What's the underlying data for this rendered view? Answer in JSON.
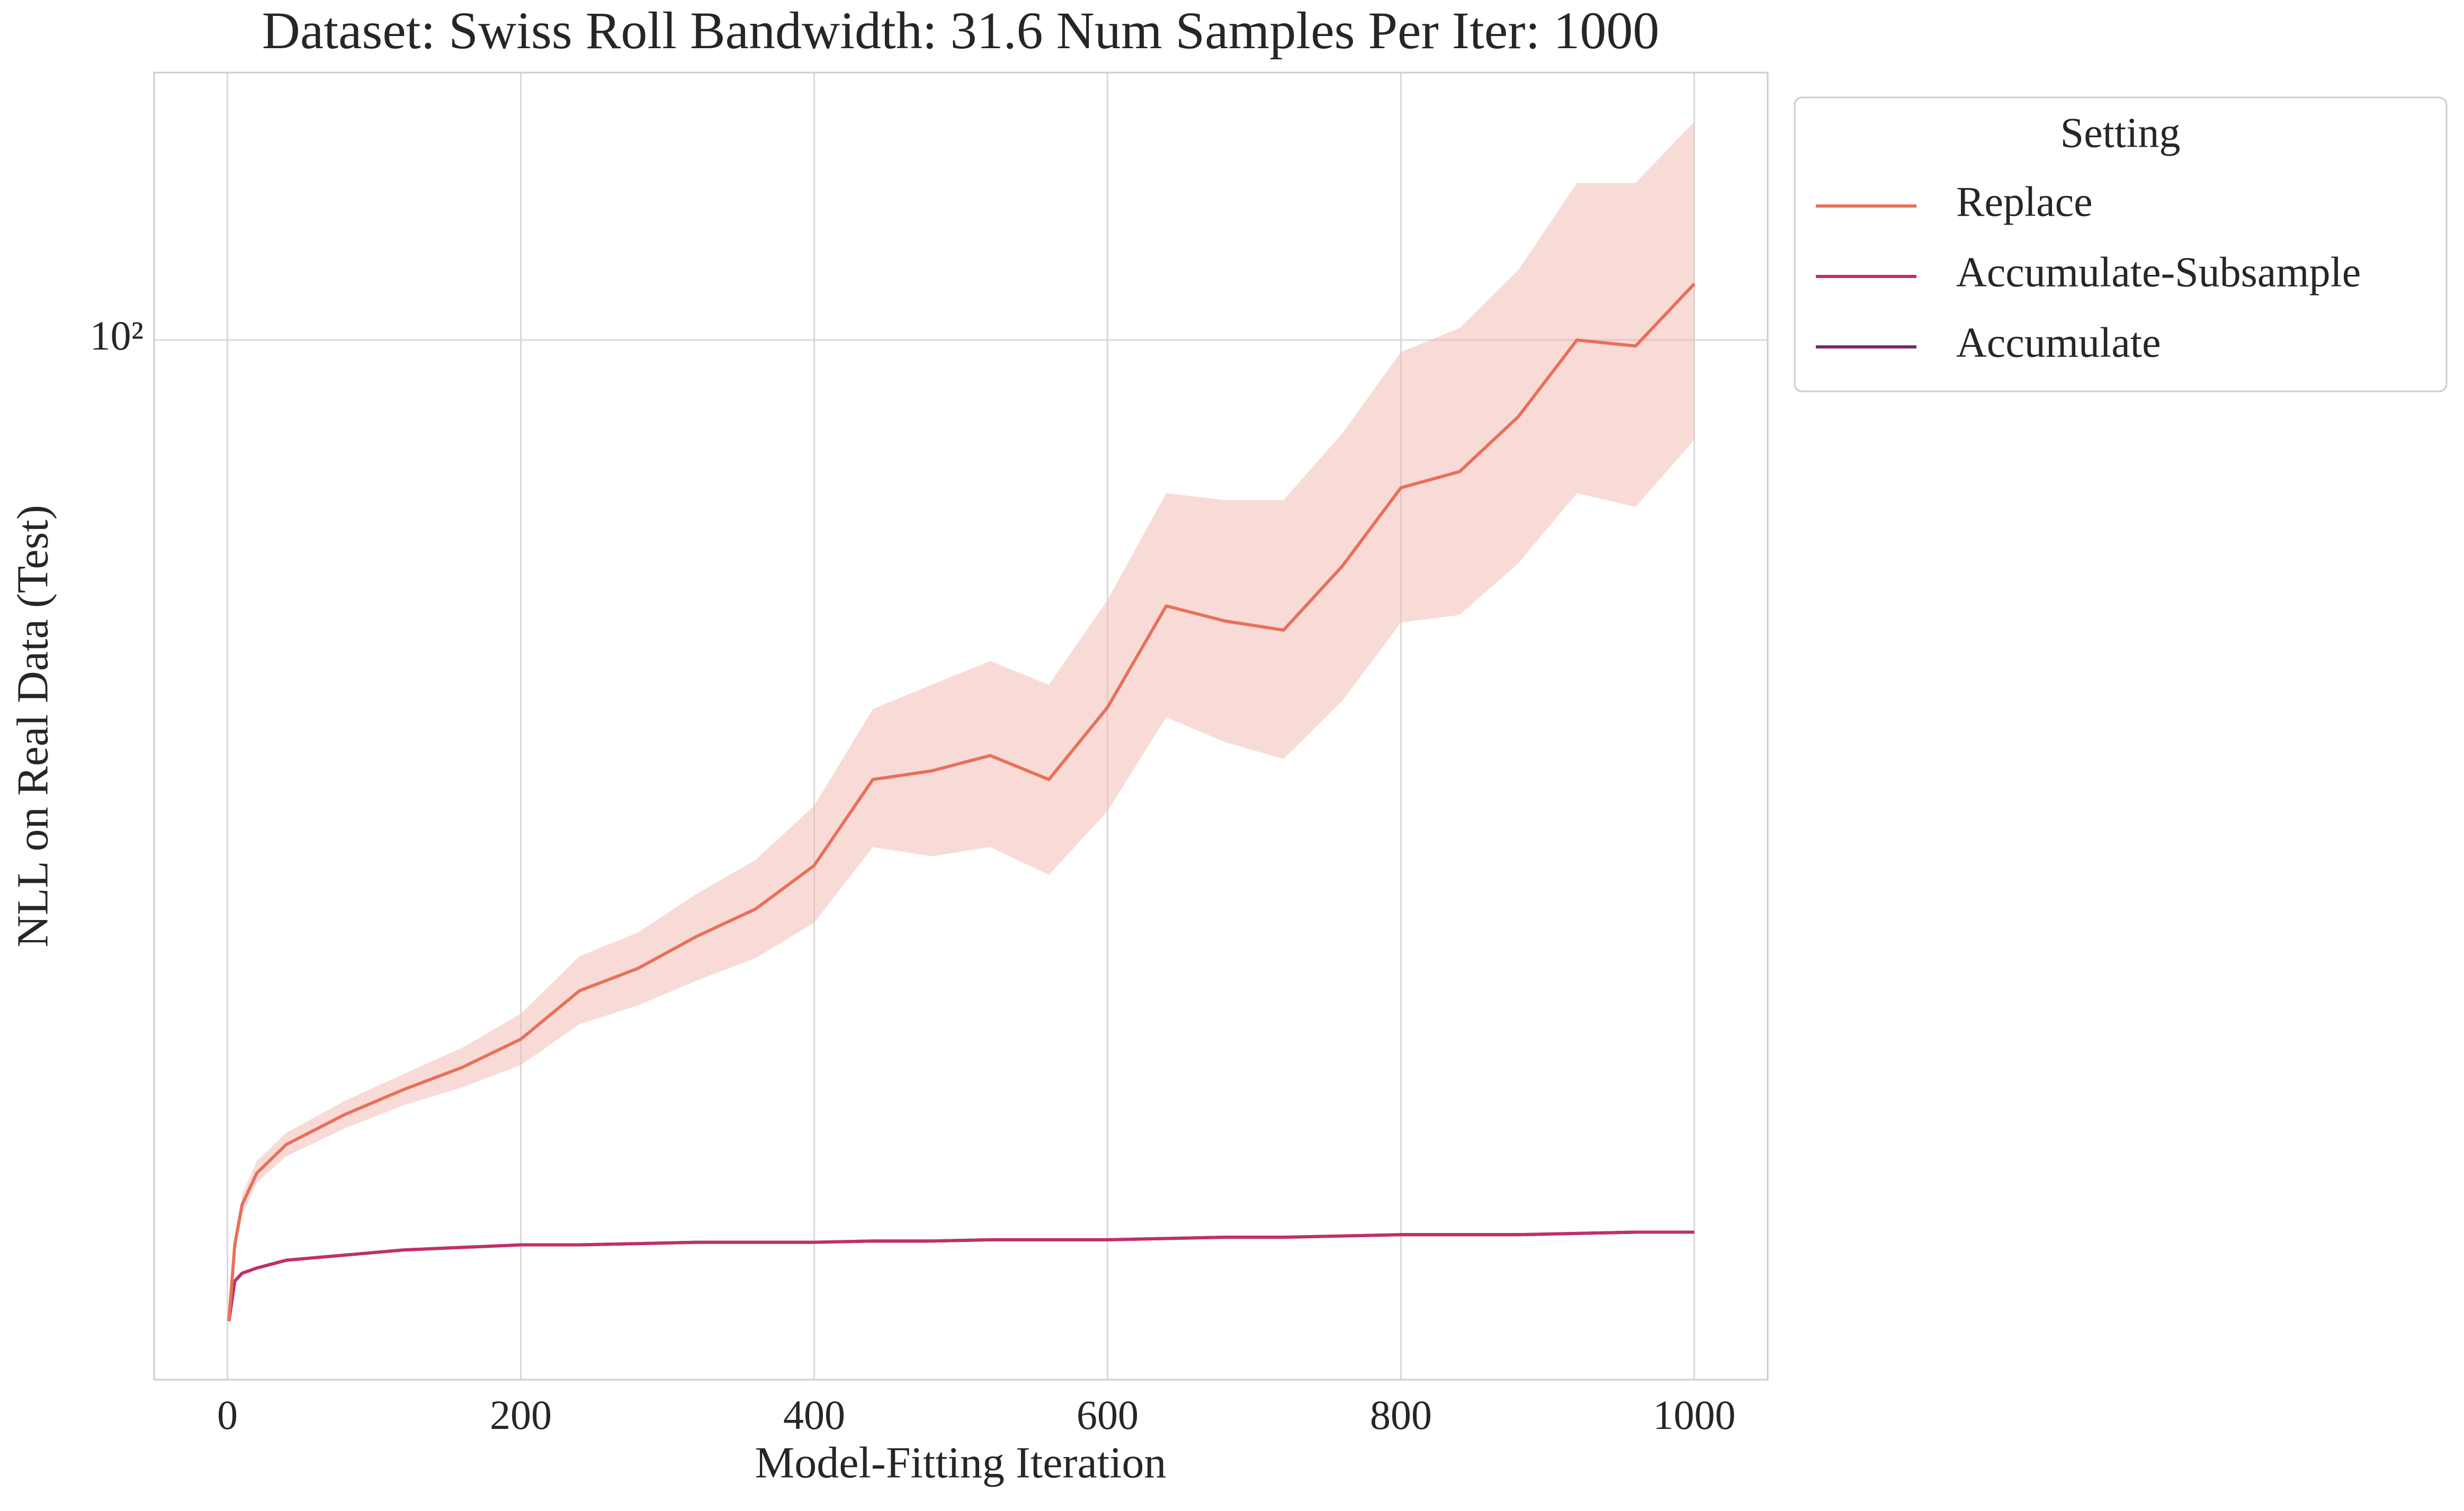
{
  "chart_data": {
    "type": "line",
    "title": "Dataset: Swiss Roll Bandwidth: 31.6 Num Samples Per Iter: 1000",
    "x_label": "Model-Fitting Iteration",
    "y_label": "NLL on Real Data (Test)",
    "yscale": "log",
    "grid": true,
    "legend_title": "Setting",
    "legend_loc": "outside upper right",
    "band_color": "#f2b8ad",
    "xlim": [
      -50,
      1050
    ],
    "xticks": [
      0,
      200,
      400,
      600,
      800,
      1000
    ],
    "ylim": [
      42,
      125
    ],
    "yticks": [
      {
        "value": 100,
        "label": "10²"
      }
    ],
    "x": [
      1,
      5,
      10,
      20,
      40,
      80,
      120,
      160,
      200,
      240,
      280,
      320,
      360,
      400,
      440,
      480,
      520,
      560,
      600,
      640,
      680,
      720,
      760,
      800,
      840,
      880,
      920,
      960,
      1000
    ],
    "series": [
      {
        "name": "Replace",
        "color": "#e8705a",
        "values": [
          44.1,
          47.0,
          48.6,
          49.9,
          51.1,
          52.4,
          53.5,
          54.5,
          55.8,
          58.1,
          59.2,
          60.8,
          62.2,
          64.5,
          69.3,
          69.8,
          70.7,
          69.3,
          73.6,
          80.1,
          79.1,
          78.5,
          82.8,
          88.4,
          89.6,
          93.8,
          100,
          99.5,
          104.8
        ],
        "lower": [
          43.9,
          46.7,
          48.2,
          49.5,
          50.6,
          51.8,
          52.8,
          53.6,
          54.6,
          56.5,
          57.4,
          58.6,
          59.7,
          61.5,
          65.5,
          65.0,
          65.5,
          64.0,
          67.5,
          73.0,
          71.5,
          70.5,
          74.0,
          79.0,
          79.5,
          83.0,
          88.0,
          87.0,
          92.0
        ],
        "upper": [
          44.3,
          47.4,
          49.0,
          50.4,
          51.6,
          53.0,
          54.2,
          55.4,
          57.0,
          59.8,
          61.0,
          63.0,
          64.8,
          67.8,
          73.5,
          75.0,
          76.5,
          75.0,
          80.5,
          88.0,
          87.5,
          87.5,
          92.5,
          99.0,
          101,
          106,
          114,
          114,
          120
        ]
      },
      {
        "name": "Accumulate-Subsample",
        "color": "#c0306a",
        "values": [
          44.1,
          45.6,
          45.9,
          46.1,
          46.4,
          46.6,
          46.8,
          46.9,
          47.0,
          47.0,
          47.05,
          47.1,
          47.1,
          47.1,
          47.15,
          47.15,
          47.2,
          47.2,
          47.2,
          47.25,
          47.3,
          47.3,
          47.35,
          47.4,
          47.4,
          47.4,
          47.45,
          47.5,
          47.5
        ]
      },
      {
        "name": "Accumulate",
        "color": "#7a2a6e",
        "values": [
          44.1,
          45.6,
          45.9,
          46.1,
          46.4,
          46.6,
          46.8,
          46.9,
          47.0,
          47.0,
          47.05,
          47.1,
          47.1,
          47.1,
          47.15,
          47.15,
          47.2,
          47.2,
          47.2,
          47.25,
          47.3,
          47.3,
          47.35,
          47.4,
          47.4,
          47.4,
          47.45,
          47.5,
          47.5
        ]
      }
    ]
  }
}
